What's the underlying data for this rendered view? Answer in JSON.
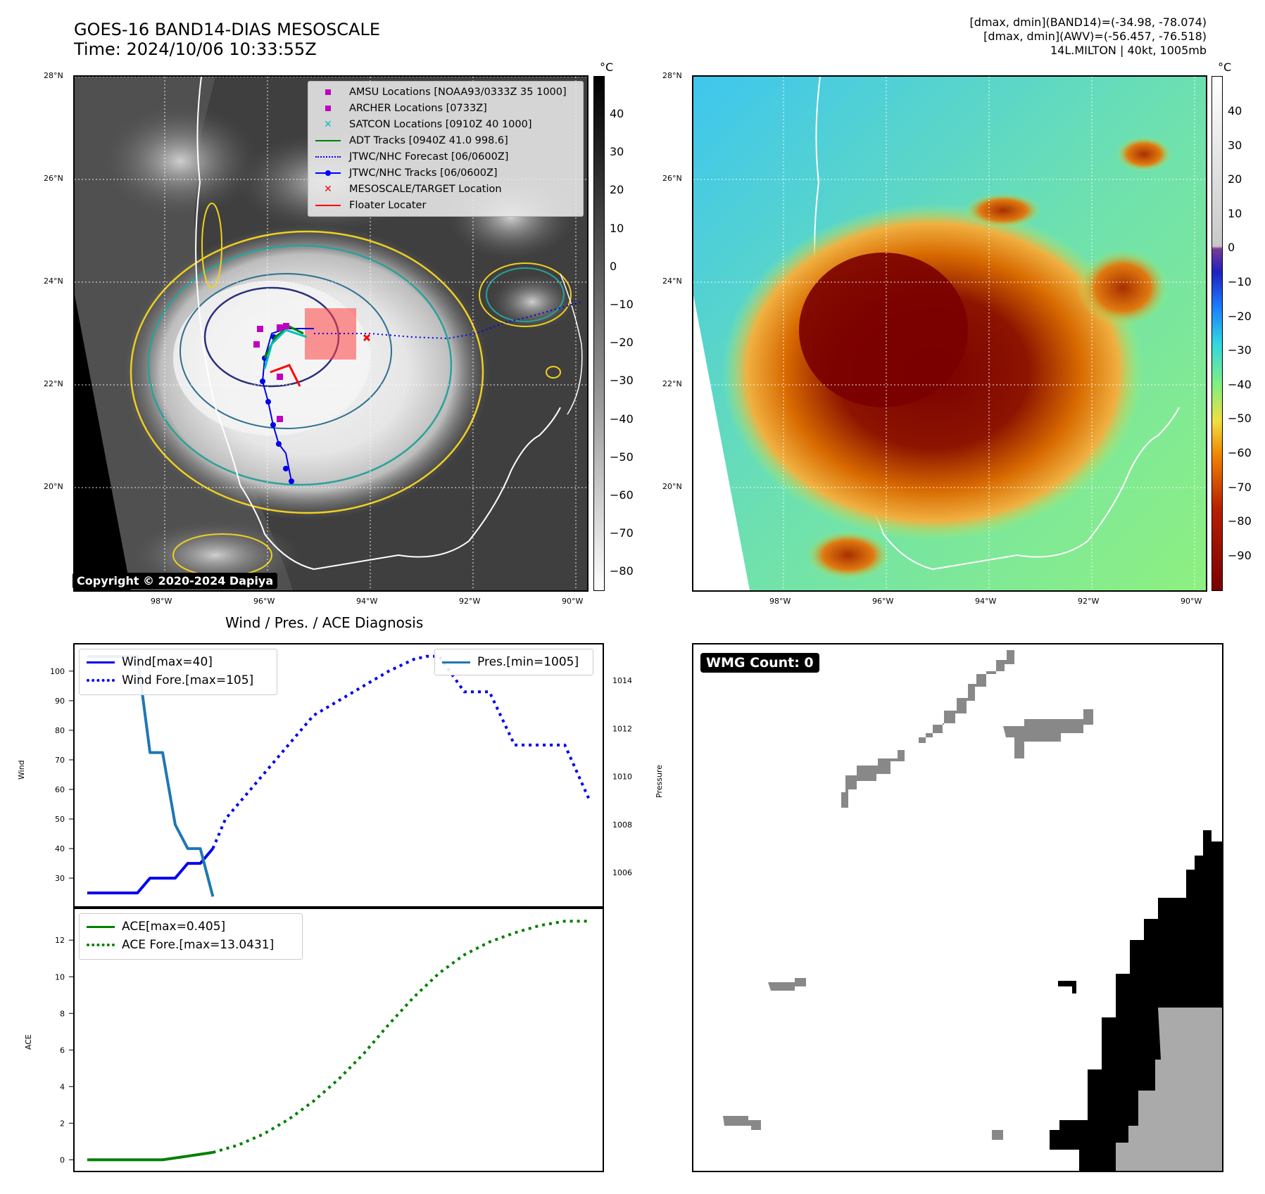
{
  "title": {
    "line1": "GOES-16 BAND14-DIAS MESOSCALE",
    "line2": "Time: 2024/10/06 10:33:55Z"
  },
  "info": {
    "line1": "[dmax, dmin](BAND14)=(-34.98, -78.074)",
    "line2": "[dmax, dmin](AWV)=(-56.457, -76.518)",
    "line3": "14L.MILTON | 40kt, 1005mb"
  },
  "map": {
    "lat_labels": [
      "28°N",
      "26°N",
      "24°N",
      "22°N",
      "20°N"
    ],
    "lon_labels": [
      "98°W",
      "96°W",
      "94°W",
      "92°W",
      "90°W"
    ],
    "copyright": "Copyright © 2020-2024 Dapiya"
  },
  "legend": [
    {
      "label": "AMSU Locations [NOAA93/0333Z 35 1000]",
      "color": "#bf00bf",
      "marker": "square"
    },
    {
      "label": "ARCHER Locations [0733Z]",
      "color": "#bf00bf",
      "marker": "square"
    },
    {
      "label": "SATCON Locations [0910Z 40 1000]",
      "color": "#00bfbf",
      "marker": "x"
    },
    {
      "label": "ADT Tracks [0940Z 41.0 998.6]",
      "color": "#008000",
      "marker": "line"
    },
    {
      "label": "JTWC/NHC Forecast [06/0600Z]",
      "color": "#0000ff",
      "marker": "dotted"
    },
    {
      "label": "JTWC/NHC Tracks [06/0600Z]",
      "color": "#0000ff",
      "marker": "line-dot"
    },
    {
      "label": "MESOSCALE/TARGET Location",
      "color": "#ff0000",
      "marker": "x"
    },
    {
      "label": "Floater Locater",
      "color": "#ff0000",
      "marker": "line"
    }
  ],
  "colorbar_left": {
    "unit": "°C",
    "ticks": [
      "40",
      "30",
      "20",
      "10",
      "0",
      "−10",
      "−20",
      "−30",
      "−40",
      "−50",
      "−60",
      "−70",
      "−80"
    ]
  },
  "colorbar_right": {
    "unit": "°C",
    "ticks": [
      "40",
      "30",
      "20",
      "10",
      "0",
      "−10",
      "−20",
      "−30",
      "−40",
      "−50",
      "−60",
      "−70",
      "−80",
      "−90"
    ]
  },
  "diagnosis": {
    "title": "Wind / Pres. / ACE Diagnosis",
    "wind_ylabel": "Wind",
    "pres_ylabel": "Pressure",
    "ace_ylabel": "ACE",
    "wind_legend": [
      "Wind[max=40]",
      "Wind Fore.[max=105]"
    ],
    "pres_legend": [
      "Pres.[min=1005]"
    ],
    "ace_legend": [
      "ACE[max=0.405]",
      "ACE Fore.[max=13.0431]"
    ],
    "wmg": "WMG Count: 0"
  },
  "chart_data": [
    {
      "type": "line",
      "name": "wind-pressure",
      "wind_yticks": [
        30,
        40,
        50,
        60,
        70,
        80,
        90,
        100
      ],
      "wind_ylim": [
        20.5,
        109
      ],
      "pres_yticks": [
        1006,
        1008,
        1010,
        1012,
        1014
      ],
      "pres_ylim": [
        1004.6,
        1015.5
      ],
      "series": [
        {
          "name": "Wind[max=40]",
          "color": "#0000ee",
          "style": "solid",
          "x": [
            0,
            2,
            3,
            4,
            5,
            6,
            7,
            8,
            9,
            10
          ],
          "values": [
            25,
            25,
            25,
            25,
            30,
            30,
            30,
            35,
            35,
            40
          ]
        },
        {
          "name": "Wind Fore.[max=105]",
          "color": "#0000ee",
          "style": "dotted",
          "x": [
            10,
            11,
            12,
            13,
            14,
            15,
            16,
            18,
            20,
            22,
            24,
            26,
            27,
            28,
            30,
            32,
            34,
            36,
            38,
            40
          ],
          "values": [
            40,
            50,
            55,
            60,
            65,
            70,
            75,
            85,
            90,
            95,
            100,
            104,
            105,
            105,
            93,
            93,
            75,
            75,
            75,
            56
          ]
        },
        {
          "name": "Pres.[min=1005]",
          "color": "#1f77b4",
          "style": "solid",
          "axis": "right",
          "x": [
            0,
            2,
            4,
            5,
            6,
            7,
            8,
            9,
            10
          ],
          "values": [
            1015,
            1015,
            1015,
            1011,
            1011,
            1008,
            1007,
            1007,
            1005
          ]
        }
      ]
    },
    {
      "type": "line",
      "name": "ace",
      "yticks": [
        0,
        2,
        4,
        6,
        8,
        10,
        12
      ],
      "ylim": [
        -0.6,
        13.7
      ],
      "series": [
        {
          "name": "ACE[max=0.405]",
          "color": "#008000",
          "style": "solid",
          "x": [
            0,
            3,
            6,
            8,
            10
          ],
          "values": [
            0,
            0,
            0,
            0.2,
            0.405
          ]
        },
        {
          "name": "ACE Fore.[max=13.0431]",
          "color": "#008000",
          "style": "dotted",
          "x": [
            10,
            12,
            14,
            16,
            18,
            20,
            22,
            24,
            26,
            28,
            30,
            32,
            34,
            36,
            38,
            40
          ],
          "values": [
            0.405,
            0.8,
            1.4,
            2.2,
            3.2,
            4.4,
            5.8,
            7.4,
            8.9,
            10.2,
            11.2,
            11.9,
            12.4,
            12.8,
            13.04,
            13.04
          ]
        }
      ]
    }
  ]
}
